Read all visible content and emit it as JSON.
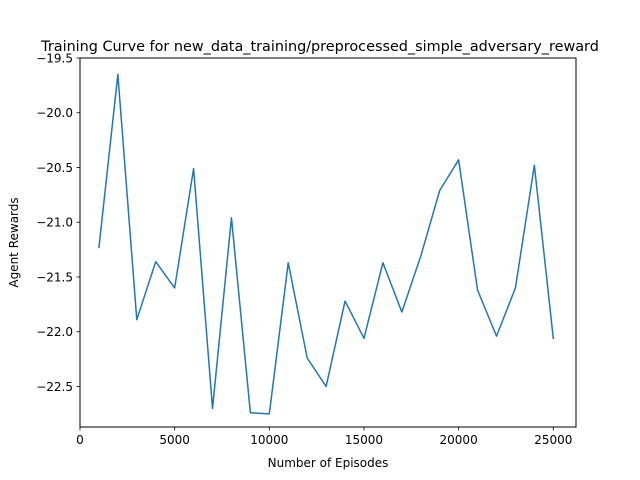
{
  "chart_data": {
    "type": "line",
    "title": "Training Curve for new_data_training/preprocessed_simple_adversary_reward",
    "xlabel": "Number of Episodes",
    "ylabel": "Agent Rewards",
    "xlim": [
      0,
      26200
    ],
    "ylim": [
      -22.87,
      -19.5
    ],
    "x_ticks": [
      0,
      5000,
      10000,
      15000,
      20000,
      25000
    ],
    "x_tick_labels": [
      "0",
      "5000",
      "10000",
      "15000",
      "20000",
      "25000"
    ],
    "y_ticks": [
      -19.5,
      -20.0,
      -20.5,
      -21.0,
      -21.5,
      -22.0,
      -22.5
    ],
    "y_tick_labels": [
      "−19.5",
      "−20.0",
      "−20.5",
      "−21.0",
      "−21.5",
      "−22.0",
      "−22.5"
    ],
    "grid": false,
    "series": [
      {
        "color": "#1f77b4",
        "x": [
          1000,
          2000,
          3000,
          4000,
          5000,
          6000,
          7000,
          8000,
          9000,
          10000,
          11000,
          12000,
          13000,
          14000,
          15000,
          16000,
          17000,
          18000,
          19000,
          20000,
          21000,
          22000,
          23000,
          24000,
          25000
        ],
        "y": [
          -21.23,
          -19.65,
          -21.89,
          -21.36,
          -21.6,
          -20.51,
          -22.7,
          -20.96,
          -22.74,
          -22.75,
          -21.37,
          -22.24,
          -22.5,
          -21.72,
          -22.06,
          -21.37,
          -21.82,
          -21.31,
          -20.71,
          -20.43,
          -21.62,
          -22.04,
          -21.6,
          -20.48,
          -22.06
        ]
      }
    ]
  }
}
